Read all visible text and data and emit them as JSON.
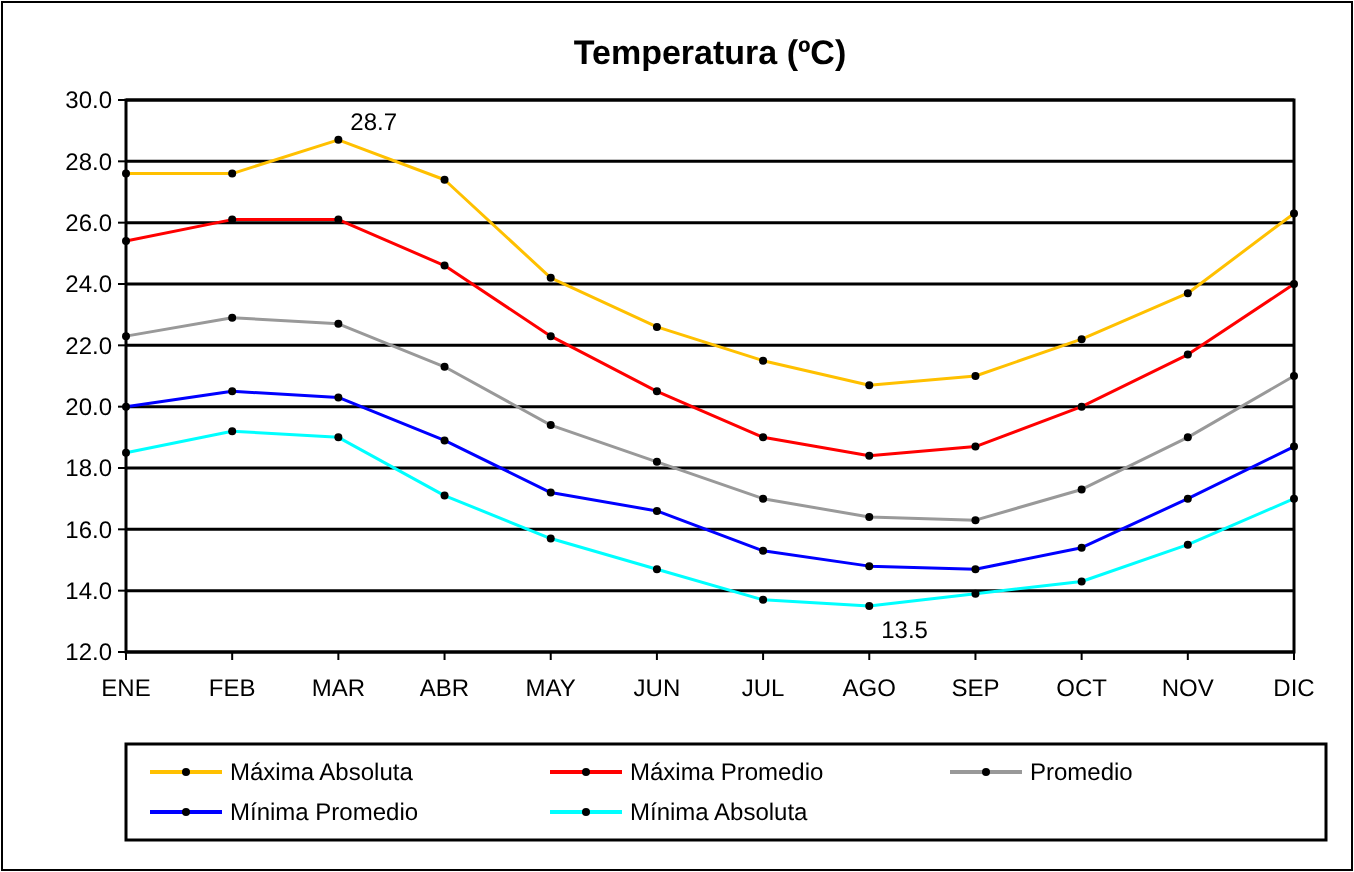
{
  "chart_data": {
    "type": "line",
    "title": "Temperatura (ºC)",
    "categories": [
      "ENE",
      "FEB",
      "MAR",
      "ABR",
      "MAY",
      "JUN",
      "JUL",
      "AGO",
      "SEP",
      "OCT",
      "NOV",
      "DIC"
    ],
    "series": [
      {
        "name": "Máxima Absoluta",
        "color": "#ffc000",
        "values": [
          27.6,
          27.6,
          28.7,
          27.4,
          24.2,
          22.6,
          21.5,
          20.7,
          21.0,
          22.2,
          23.7,
          26.3
        ]
      },
      {
        "name": "Máxima Promedio",
        "color": "#ff0000",
        "values": [
          25.4,
          26.1,
          26.1,
          24.6,
          22.3,
          20.5,
          19.0,
          18.4,
          18.7,
          20.0,
          21.7,
          24.0
        ]
      },
      {
        "name": "Promedio",
        "color": "#999999",
        "values": [
          22.3,
          22.9,
          22.7,
          21.3,
          19.4,
          18.2,
          17.0,
          16.4,
          16.3,
          17.3,
          19.0,
          21.0
        ]
      },
      {
        "name": "Mínima Promedio",
        "color": "#0000ff",
        "values": [
          20.0,
          20.5,
          20.3,
          18.9,
          17.2,
          16.6,
          15.3,
          14.8,
          14.7,
          15.4,
          17.0,
          18.7
        ]
      },
      {
        "name": "Mínima Absoluta",
        "color": "#00ffff",
        "values": [
          18.5,
          19.2,
          19.0,
          17.1,
          15.7,
          14.7,
          13.7,
          13.5,
          13.9,
          14.3,
          15.5,
          17.0
        ]
      }
    ],
    "ylim": [
      12,
      30
    ],
    "yticks": [
      {
        "value": 12,
        "label": "12.0"
      },
      {
        "value": 14,
        "label": "14.0"
      },
      {
        "value": 16,
        "label": "16.0"
      },
      {
        "value": 18,
        "label": "18.0"
      },
      {
        "value": 20,
        "label": "20.0"
      },
      {
        "value": 22,
        "label": "22.0"
      },
      {
        "value": 24,
        "label": "24.0"
      },
      {
        "value": 26,
        "label": "26.0"
      },
      {
        "value": 28,
        "label": "28.0"
      },
      {
        "value": 30,
        "label": "30.0"
      }
    ],
    "grid": "y",
    "legend": "bottom",
    "marker": "circle",
    "line_style": "solid",
    "annotations": [
      {
        "text": "28.7",
        "x": "MAR",
        "y": 28.7
      },
      {
        "text": "13.5",
        "x": "AGO",
        "y": 13.5
      }
    ]
  }
}
